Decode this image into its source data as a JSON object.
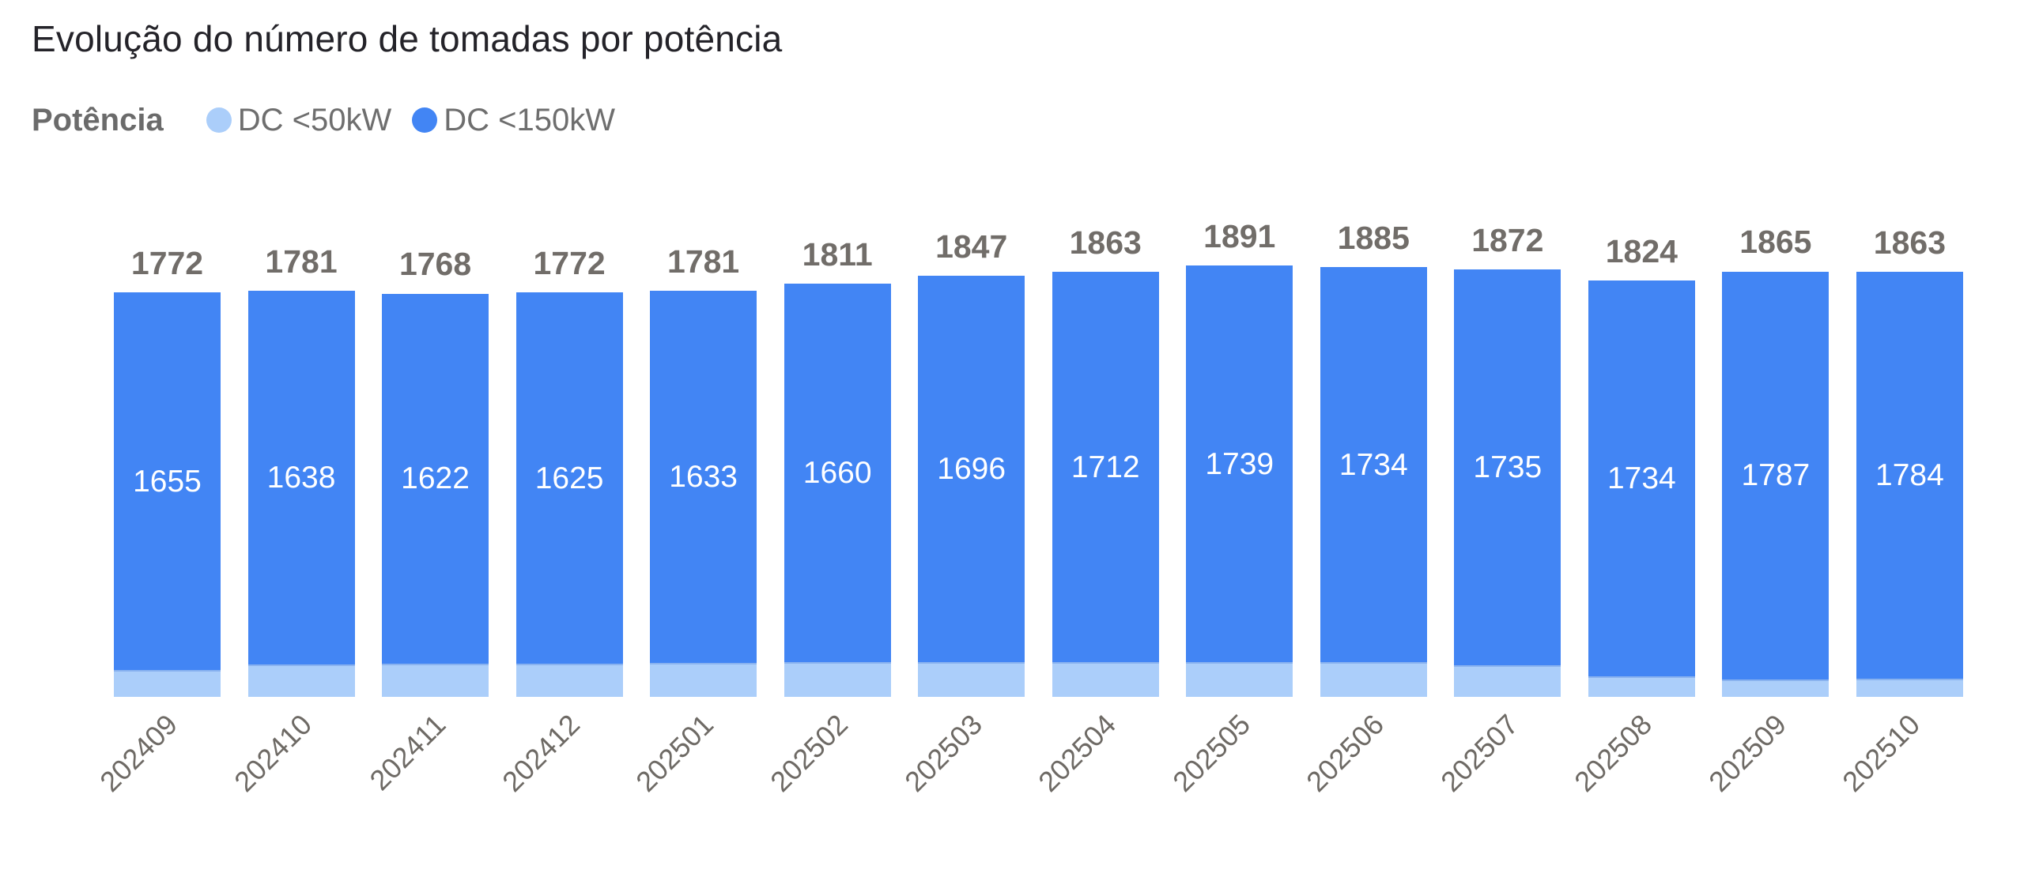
{
  "title": "Evolução do número de tomadas por potência",
  "legend": {
    "title": "Potência",
    "items": [
      {
        "label": "DC <50kW",
        "color": "#ABCEFA"
      },
      {
        "label": "DC <150kW",
        "color": "#4285F4"
      }
    ]
  },
  "colors": {
    "bar_light_blue": "#ABCEFA",
    "bar_dark_blue": "#4285F4",
    "title_text": "#242329",
    "label_gray": "#716d69",
    "axis_gray": "#6e6a65",
    "inner_label_white": "#ffffff"
  },
  "chart_data": {
    "type": "bar",
    "stacked": true,
    "orientation": "vertical",
    "title": "Evolução do número de tomadas por potência",
    "xlabel": "",
    "ylabel": "",
    "y_axis_visible": false,
    "grid": false,
    "legend_position": "top-left",
    "legend_title": "Potência",
    "categories": [
      "202409",
      "202410",
      "202411",
      "202412",
      "202501",
      "202502",
      "202503",
      "202504",
      "202505",
      "202506",
      "202507",
      "202508",
      "202509",
      "202510"
    ],
    "series": [
      {
        "name": "DC <50kW",
        "color": "#ABCEFA",
        "values": [
          117,
          143,
          146,
          147,
          148,
          151,
          151,
          151,
          152,
          151,
          137,
          90,
          78,
          79
        ]
      },
      {
        "name": "DC <150kW",
        "color": "#4285F4",
        "values": [
          1655,
          1638,
          1622,
          1625,
          1633,
          1660,
          1696,
          1712,
          1739,
          1734,
          1735,
          1734,
          1787,
          1784
        ]
      }
    ],
    "totals": [
      1772,
      1781,
      1768,
      1772,
      1781,
      1811,
      1847,
      1863,
      1891,
      1885,
      1872,
      1824,
      1865,
      1863
    ],
    "value_labels": {
      "totals_above_bars": true,
      "dark_segment_values_inside_bars": true
    },
    "ylim": [
      0,
      1950
    ],
    "x_tick_rotation": -45
  }
}
